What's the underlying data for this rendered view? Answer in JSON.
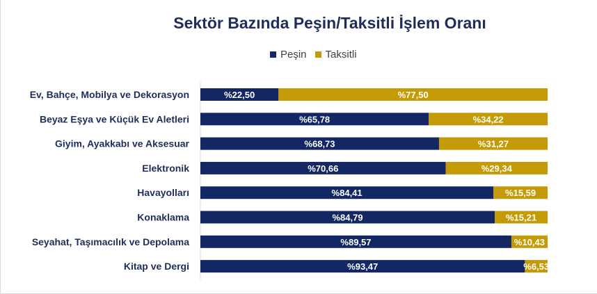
{
  "chart_data": {
    "type": "bar",
    "orientation": "horizontal",
    "stacked": true,
    "title": "Sektör Bazında Peşin/Taksitli İşlem Oranı",
    "categories": [
      "Ev, Bahçe, Mobilya ve Dekorasyon",
      "Beyaz Eşya ve Küçük Ev Aletleri",
      "Giyim, Ayakkabı ve Aksesuar",
      "Elektronik",
      "Havayolları",
      "Konaklama",
      "Seyahat, Taşımacılık ve Depolama",
      "Kitap ve Dergi"
    ],
    "series": [
      {
        "name": "Peşin",
        "color": "#132764",
        "values": [
          22.5,
          65.78,
          68.73,
          70.66,
          84.41,
          84.79,
          89.57,
          93.47
        ],
        "labels": [
          "%22,50",
          "%65,78",
          "%68,73",
          "%70,66",
          "%84,41",
          "%84,79",
          "%89,57",
          "%93,47"
        ]
      },
      {
        "name": "Taksitli",
        "color": "#c49a06",
        "values": [
          77.5,
          34.22,
          31.27,
          29.34,
          15.59,
          15.21,
          10.43,
          6.53
        ],
        "labels": [
          "%77,50",
          "%34,22",
          "%31,27",
          "%29,34",
          "%15,59",
          "%15,21",
          "%10,43",
          "%6,53"
        ]
      }
    ],
    "xlim": [
      0,
      100
    ],
    "grid": false,
    "legend_position": "top"
  }
}
